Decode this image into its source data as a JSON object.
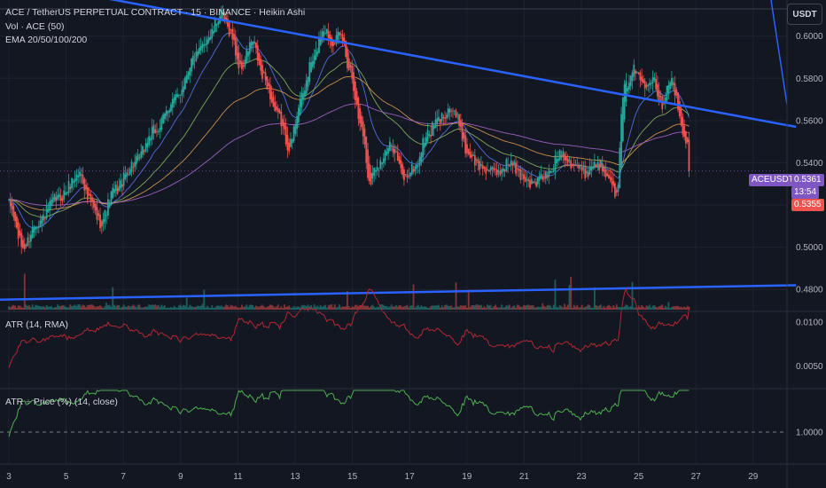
{
  "header": {
    "symbol_line": "ACE / TetherUS PERPETUAL CONTRACT · 15 · BINANCE · Heikin Ashi",
    "volume_label": "Vol · ACE (50)",
    "ema_label": "EMA 20/50/100/200"
  },
  "currency_button": "USDT",
  "colors": {
    "background": "#131722",
    "grid": "#1f2330",
    "up_candle": "#26a69a",
    "down_candle": "#ef5350",
    "trendline": "#2962ff",
    "atr_line": "#b22833",
    "atr_price_line": "#4caf50",
    "ticker_badge": "#7e57c2",
    "price_badge": "#ef5350"
  },
  "price_badges": {
    "ticker": "ACEUSDT.P",
    "last_price": "0.5361",
    "countdown": "13:54",
    "alt_price": "0.5355"
  },
  "panes": {
    "atr_label": "ATR (14, RMA)",
    "atr_price_label": "ATR ÷ Price (%) (14, close)"
  },
  "chart_data": {
    "type": "candlestick",
    "price_axis_ticks": [
      "0.6000",
      "0.5800",
      "0.5600",
      "0.5400",
      "0.5200",
      "0.5000",
      "0.4800"
    ],
    "price_range": [
      0.47,
      0.615
    ],
    "atr_axis_ticks": [
      "0.0100",
      "0.0050"
    ],
    "atr_range": [
      0.0025,
      0.011
    ],
    "atr_price_axis_ticks": [
      "1.0000"
    ],
    "time_axis_ticks": [
      "3",
      "5",
      "7",
      "9",
      "11",
      "13",
      "15",
      "17",
      "19",
      "21",
      "23",
      "25",
      "27",
      "29"
    ],
    "price_key_points": [
      [
        0,
        0.52
      ],
      [
        0.5,
        0.5
      ],
      [
        1,
        0.512
      ],
      [
        1.7,
        0.523
      ],
      [
        2.5,
        0.535
      ],
      [
        2.8,
        0.522
      ],
      [
        3.2,
        0.512
      ],
      [
        3.7,
        0.527
      ],
      [
        4.4,
        0.54
      ],
      [
        5.1,
        0.555
      ],
      [
        5.8,
        0.57
      ],
      [
        6.5,
        0.59
      ],
      [
        7,
        0.6
      ],
      [
        7.4,
        0.61
      ],
      [
        7.7,
        0.603
      ],
      [
        8.1,
        0.585
      ],
      [
        8.5,
        0.597
      ],
      [
        8.9,
        0.58
      ],
      [
        9.4,
        0.562
      ],
      [
        9.8,
        0.548
      ],
      [
        10.2,
        0.57
      ],
      [
        10.6,
        0.588
      ],
      [
        11,
        0.604
      ],
      [
        11.3,
        0.598
      ],
      [
        11.6,
        0.6
      ],
      [
        11.9,
        0.585
      ],
      [
        12.3,
        0.558
      ],
      [
        12.6,
        0.532
      ],
      [
        12.9,
        0.54
      ],
      [
        13.4,
        0.548
      ],
      [
        13.8,
        0.533
      ],
      [
        14.2,
        0.538
      ],
      [
        14.6,
        0.553
      ],
      [
        15,
        0.56
      ],
      [
        15.4,
        0.566
      ],
      [
        15.7,
        0.56
      ],
      [
        16,
        0.545
      ],
      [
        16.5,
        0.538
      ],
      [
        17,
        0.535
      ],
      [
        17.5,
        0.54
      ],
      [
        17.9,
        0.534
      ],
      [
        18.3,
        0.53
      ],
      [
        18.8,
        0.534
      ],
      [
        19.3,
        0.545
      ],
      [
        19.7,
        0.54
      ],
      [
        20.1,
        0.535
      ],
      [
        20.5,
        0.54
      ],
      [
        21,
        0.535
      ],
      [
        21.2,
        0.522
      ],
      [
        21.5,
        0.575
      ],
      [
        21.8,
        0.584
      ],
      [
        22.2,
        0.578
      ],
      [
        22.5,
        0.581
      ],
      [
        22.8,
        0.568
      ],
      [
        23.1,
        0.58
      ],
      [
        23.3,
        0.572
      ],
      [
        23.5,
        0.555
      ],
      [
        23.7,
        0.548
      ],
      [
        23.8,
        0.536
      ]
    ],
    "trendlines": [
      {
        "name": "upper",
        "points": [
          [
            -1,
            0.629
          ],
          [
            27.5,
            0.557
          ]
        ]
      },
      {
        "name": "lower",
        "points": [
          [
            -1,
            0.475
          ],
          [
            27.5,
            0.482
          ]
        ]
      }
    ]
  }
}
